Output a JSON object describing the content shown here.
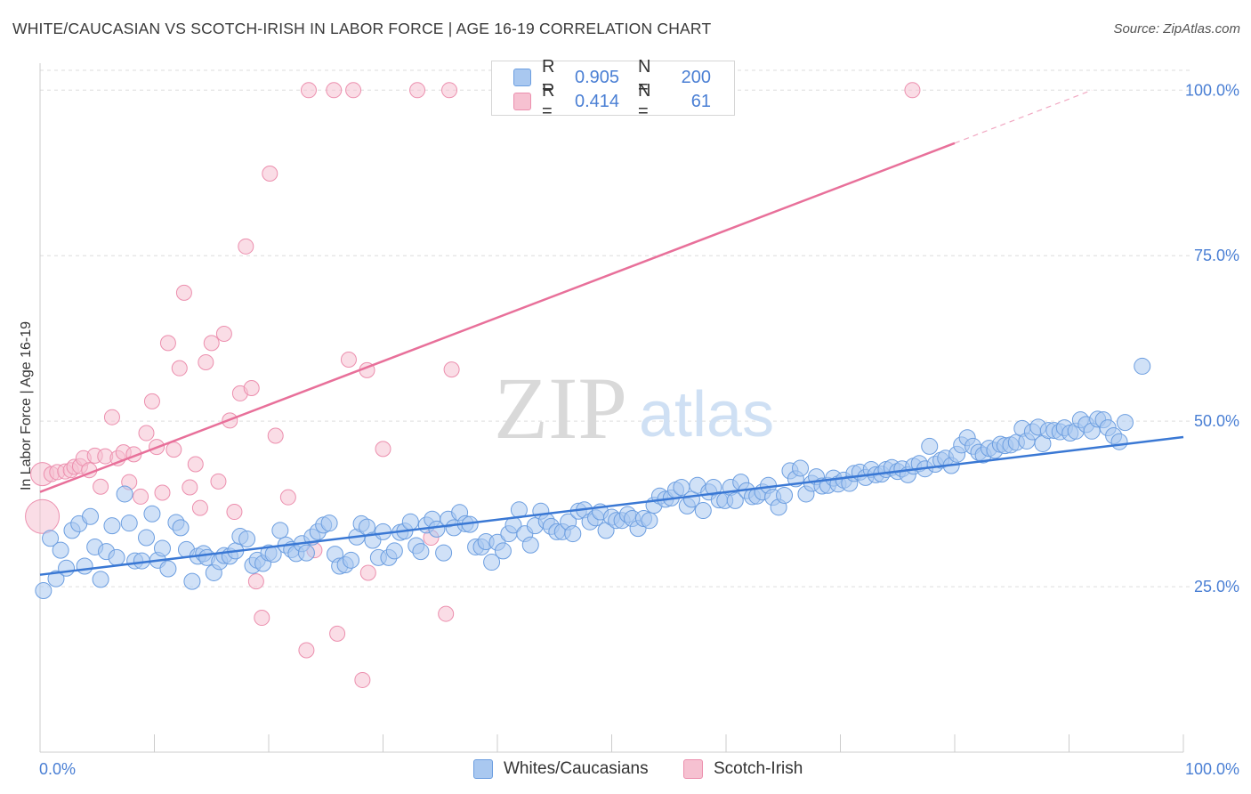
{
  "title": "WHITE/CAUCASIAN VS SCOTCH-IRISH IN LABOR FORCE | AGE 16-19 CORRELATION CHART",
  "source": "Source: ZipAtlas.com",
  "watermark": {
    "zip": "ZIP",
    "atlas": "atlas"
  },
  "colors": {
    "blue_fill": "#a9c8f0",
    "blue_stroke": "#6c9ee0",
    "blue_line": "#3a78d4",
    "pink_fill": "#f6c1d1",
    "pink_stroke": "#ec8fae",
    "pink_line": "#e8709a",
    "tick_label": "#4a7fd4",
    "grid": "#dddddd"
  },
  "stats_legend": [
    {
      "r_label": "R =",
      "r_value": "0.905",
      "n_label": "N =",
      "n_value": "200"
    },
    {
      "r_label": "R =",
      "r_value": "0.414",
      "n_label": "N =",
      "n_value": "61"
    }
  ],
  "series_legend": [
    "Whites/Caucasians",
    "Scotch-Irish"
  ],
  "chart_data": {
    "type": "scatter",
    "title": "WHITE/CAUCASIAN VS SCOTCH-IRISH IN LABOR FORCE | AGE 16-19 CORRELATION CHART",
    "xlabel": "",
    "ylabel": "In Labor Force | Age 16-19",
    "xlim": [
      0,
      100
    ],
    "ylim": [
      0,
      103
    ],
    "x_tick_labels": [
      "0.0%",
      "100.0%"
    ],
    "y_ticks": [
      25,
      50,
      75,
      100
    ],
    "y_tick_labels": [
      "25.0%",
      "50.0%",
      "75.0%",
      "100.0%"
    ],
    "grid": true,
    "legend_position": "top-center and bottom",
    "series": [
      {
        "name": "Whites/Caucasians",
        "color": "#a9c8f0",
        "trend": {
          "x": [
            0,
            100
          ],
          "y": [
            26.8,
            47.6
          ]
        },
        "points": [
          [
            0.3,
            24.4
          ],
          [
            0.9,
            32.3
          ],
          [
            1.4,
            26.2
          ],
          [
            1.8,
            30.5
          ],
          [
            2.3,
            27.8
          ],
          [
            2.8,
            33.5
          ],
          [
            3.4,
            34.5
          ],
          [
            3.9,
            28.1
          ],
          [
            4.4,
            35.6
          ],
          [
            4.8,
            31.0
          ],
          [
            5.3,
            26.1
          ],
          [
            5.8,
            30.3
          ],
          [
            6.3,
            34.2
          ],
          [
            6.7,
            29.4
          ],
          [
            7.4,
            39.0
          ],
          [
            7.8,
            34.6
          ],
          [
            8.3,
            28.9
          ],
          [
            8.9,
            28.9
          ],
          [
            9.3,
            32.4
          ],
          [
            9.8,
            36.0
          ],
          [
            10.3,
            29.0
          ],
          [
            10.7,
            30.8
          ],
          [
            11.2,
            27.7
          ],
          [
            11.9,
            34.7
          ],
          [
            12.3,
            33.9
          ],
          [
            12.8,
            30.6
          ],
          [
            13.3,
            25.8
          ],
          [
            13.8,
            29.6
          ],
          [
            14.3,
            30.0
          ],
          [
            14.6,
            29.4
          ],
          [
            15.2,
            27.1
          ],
          [
            15.7,
            28.8
          ],
          [
            16.1,
            29.7
          ],
          [
            16.6,
            29.6
          ],
          [
            17.1,
            30.4
          ],
          [
            17.5,
            32.6
          ],
          [
            18.1,
            32.2
          ],
          [
            18.6,
            28.2
          ],
          [
            19.0,
            29.0
          ],
          [
            19.5,
            28.5
          ],
          [
            20.0,
            30.1
          ],
          [
            20.4,
            29.9
          ],
          [
            21.0,
            33.5
          ],
          [
            21.5,
            31.3
          ],
          [
            22.0,
            30.6
          ],
          [
            22.4,
            30.0
          ],
          [
            22.9,
            31.5
          ],
          [
            23.3,
            30.1
          ],
          [
            23.8,
            32.5
          ],
          [
            24.3,
            33.3
          ],
          [
            24.8,
            34.3
          ],
          [
            25.3,
            34.6
          ],
          [
            25.8,
            29.9
          ],
          [
            26.2,
            28.1
          ],
          [
            26.7,
            28.3
          ],
          [
            27.2,
            29.0
          ],
          [
            27.7,
            32.5
          ],
          [
            28.1,
            34.5
          ],
          [
            28.6,
            34.0
          ],
          [
            29.1,
            32.0
          ],
          [
            29.6,
            29.4
          ],
          [
            30.0,
            33.3
          ],
          [
            30.5,
            29.4
          ],
          [
            31.0,
            30.4
          ],
          [
            31.5,
            33.2
          ],
          [
            31.9,
            33.4
          ],
          [
            32.4,
            34.8
          ],
          [
            32.9,
            31.2
          ],
          [
            33.3,
            30.3
          ],
          [
            33.8,
            34.3
          ],
          [
            34.3,
            35.2
          ],
          [
            34.7,
            33.7
          ],
          [
            35.3,
            30.1
          ],
          [
            35.7,
            35.2
          ],
          [
            36.2,
            33.9
          ],
          [
            36.7,
            36.2
          ],
          [
            37.2,
            34.5
          ],
          [
            37.6,
            34.4
          ],
          [
            38.1,
            31.0
          ],
          [
            38.6,
            31.0
          ],
          [
            39.0,
            31.8
          ],
          [
            39.5,
            28.7
          ],
          [
            40.0,
            31.7
          ],
          [
            40.5,
            30.4
          ],
          [
            41.0,
            33.0
          ],
          [
            41.4,
            34.3
          ],
          [
            41.9,
            36.6
          ],
          [
            42.4,
            33.0
          ],
          [
            42.9,
            31.3
          ],
          [
            43.3,
            34.2
          ],
          [
            43.8,
            36.4
          ],
          [
            44.3,
            34.9
          ],
          [
            44.7,
            34.1
          ],
          [
            45.2,
            33.3
          ],
          [
            45.7,
            33.3
          ],
          [
            46.2,
            34.8
          ],
          [
            46.6,
            33.0
          ],
          [
            47.1,
            36.4
          ],
          [
            47.6,
            36.6
          ],
          [
            48.1,
            34.8
          ],
          [
            48.6,
            35.4
          ],
          [
            49.0,
            36.3
          ],
          [
            49.5,
            33.5
          ],
          [
            50.0,
            35.5
          ],
          [
            50.4,
            35.0
          ],
          [
            50.9,
            35.0
          ],
          [
            51.4,
            35.9
          ],
          [
            51.8,
            35.3
          ],
          [
            52.3,
            33.8
          ],
          [
            52.8,
            35.3
          ],
          [
            53.3,
            35.0
          ],
          [
            53.7,
            37.3
          ],
          [
            54.2,
            38.7
          ],
          [
            54.7,
            38.2
          ],
          [
            55.2,
            38.4
          ],
          [
            55.6,
            39.6
          ],
          [
            56.1,
            40.0
          ],
          [
            56.6,
            37.2
          ],
          [
            57.0,
            38.2
          ],
          [
            57.5,
            40.3
          ],
          [
            58.0,
            36.5
          ],
          [
            58.5,
            39.3
          ],
          [
            58.9,
            40.0
          ],
          [
            59.4,
            38.1
          ],
          [
            59.9,
            38.0
          ],
          [
            60.4,
            40.0
          ],
          [
            60.8,
            38.0
          ],
          [
            61.3,
            40.8
          ],
          [
            61.8,
            39.5
          ],
          [
            62.3,
            38.6
          ],
          [
            62.7,
            38.7
          ],
          [
            63.2,
            39.3
          ],
          [
            63.7,
            40.3
          ],
          [
            64.1,
            38.5
          ],
          [
            64.6,
            37.0
          ],
          [
            65.1,
            38.8
          ],
          [
            65.6,
            42.5
          ],
          [
            66.1,
            41.3
          ],
          [
            66.5,
            42.9
          ],
          [
            67.0,
            39.0
          ],
          [
            67.5,
            40.6
          ],
          [
            67.9,
            41.6
          ],
          [
            68.4,
            40.2
          ],
          [
            68.9,
            40.3
          ],
          [
            69.4,
            41.4
          ],
          [
            69.8,
            40.5
          ],
          [
            70.3,
            41.1
          ],
          [
            70.8,
            40.6
          ],
          [
            71.2,
            42.1
          ],
          [
            71.7,
            42.3
          ],
          [
            72.2,
            41.5
          ],
          [
            72.7,
            42.7
          ],
          [
            73.1,
            41.9
          ],
          [
            73.6,
            42.0
          ],
          [
            74.0,
            42.7
          ],
          [
            74.5,
            43.0
          ],
          [
            75.0,
            42.4
          ],
          [
            75.4,
            42.8
          ],
          [
            75.9,
            41.9
          ],
          [
            76.4,
            43.2
          ],
          [
            76.9,
            43.6
          ],
          [
            77.4,
            42.8
          ],
          [
            77.8,
            46.2
          ],
          [
            78.3,
            43.5
          ],
          [
            78.8,
            44.1
          ],
          [
            79.2,
            44.4
          ],
          [
            79.7,
            43.3
          ],
          [
            80.2,
            45.0
          ],
          [
            80.6,
            46.4
          ],
          [
            81.1,
            47.5
          ],
          [
            81.6,
            46.2
          ],
          [
            82.1,
            45.3
          ],
          [
            82.5,
            44.9
          ],
          [
            83.0,
            45.9
          ],
          [
            83.5,
            45.6
          ],
          [
            84.0,
            46.5
          ],
          [
            84.4,
            46.3
          ],
          [
            84.9,
            46.4
          ],
          [
            85.4,
            46.8
          ],
          [
            85.9,
            48.9
          ],
          [
            86.3,
            47.0
          ],
          [
            86.8,
            48.4
          ],
          [
            87.3,
            49.1
          ],
          [
            87.7,
            46.6
          ],
          [
            88.2,
            48.6
          ],
          [
            88.7,
            48.6
          ],
          [
            89.2,
            48.4
          ],
          [
            89.6,
            49.0
          ],
          [
            90.1,
            48.2
          ],
          [
            90.6,
            48.5
          ],
          [
            91.0,
            50.2
          ],
          [
            91.5,
            49.5
          ],
          [
            92.0,
            48.5
          ],
          [
            92.5,
            50.3
          ],
          [
            93.0,
            50.2
          ],
          [
            93.4,
            49.0
          ],
          [
            93.9,
            47.8
          ],
          [
            94.4,
            46.9
          ],
          [
            94.9,
            49.8
          ],
          [
            96.4,
            58.3
          ]
        ]
      },
      {
        "name": "Scotch-Irish",
        "color": "#f6c1d1",
        "trend": {
          "x": [
            0,
            80
          ],
          "y": [
            39.3,
            92.0
          ]
        },
        "trend_extension": {
          "x": [
            80,
            92
          ],
          "y": [
            92.0,
            100.0
          ]
        },
        "points": [
          [
            0.2,
            42.0,
            "l"
          ],
          [
            0.2,
            35.6,
            "xl"
          ],
          [
            1.0,
            42.0
          ],
          [
            1.5,
            42.3
          ],
          [
            2.2,
            42.4
          ],
          [
            2.7,
            42.6
          ],
          [
            3.0,
            43.1
          ],
          [
            3.5,
            43.2
          ],
          [
            3.8,
            44.4
          ],
          [
            4.3,
            42.6
          ],
          [
            4.8,
            44.8
          ],
          [
            5.3,
            40.1
          ],
          [
            5.7,
            44.7
          ],
          [
            6.3,
            50.6
          ],
          [
            6.8,
            44.4
          ],
          [
            7.3,
            45.3
          ],
          [
            7.8,
            40.8
          ],
          [
            8.2,
            45.0
          ],
          [
            8.8,
            38.6
          ],
          [
            9.3,
            48.2
          ],
          [
            9.8,
            53.0
          ],
          [
            10.2,
            46.1
          ],
          [
            10.7,
            39.2
          ],
          [
            11.2,
            61.8
          ],
          [
            11.7,
            45.7
          ],
          [
            12.2,
            58.0
          ],
          [
            12.6,
            69.4
          ],
          [
            13.1,
            40.0
          ],
          [
            13.6,
            43.5
          ],
          [
            14.0,
            36.9
          ],
          [
            14.5,
            58.9
          ],
          [
            15.0,
            61.8
          ],
          [
            15.6,
            40.9
          ],
          [
            16.1,
            63.2
          ],
          [
            16.6,
            50.1
          ],
          [
            17.0,
            36.3
          ],
          [
            17.5,
            54.2
          ],
          [
            18.0,
            76.4
          ],
          [
            18.5,
            55.0
          ],
          [
            18.9,
            25.8
          ],
          [
            19.4,
            20.3
          ],
          [
            20.1,
            87.4
          ],
          [
            20.6,
            47.8
          ],
          [
            21.7,
            38.5
          ],
          [
            23.3,
            15.4
          ],
          [
            23.5,
            100.0
          ],
          [
            24.0,
            30.5
          ],
          [
            25.7,
            100.0
          ],
          [
            26.0,
            17.9
          ],
          [
            27.0,
            59.3
          ],
          [
            27.4,
            100.0
          ],
          [
            28.2,
            10.9
          ],
          [
            28.6,
            57.7
          ],
          [
            28.7,
            27.1
          ],
          [
            30.0,
            45.8
          ],
          [
            33.0,
            100.0
          ],
          [
            34.2,
            32.4
          ],
          [
            35.5,
            20.9
          ],
          [
            35.8,
            100.0
          ],
          [
            36.0,
            57.8
          ],
          [
            76.3,
            100.0
          ]
        ]
      }
    ]
  }
}
